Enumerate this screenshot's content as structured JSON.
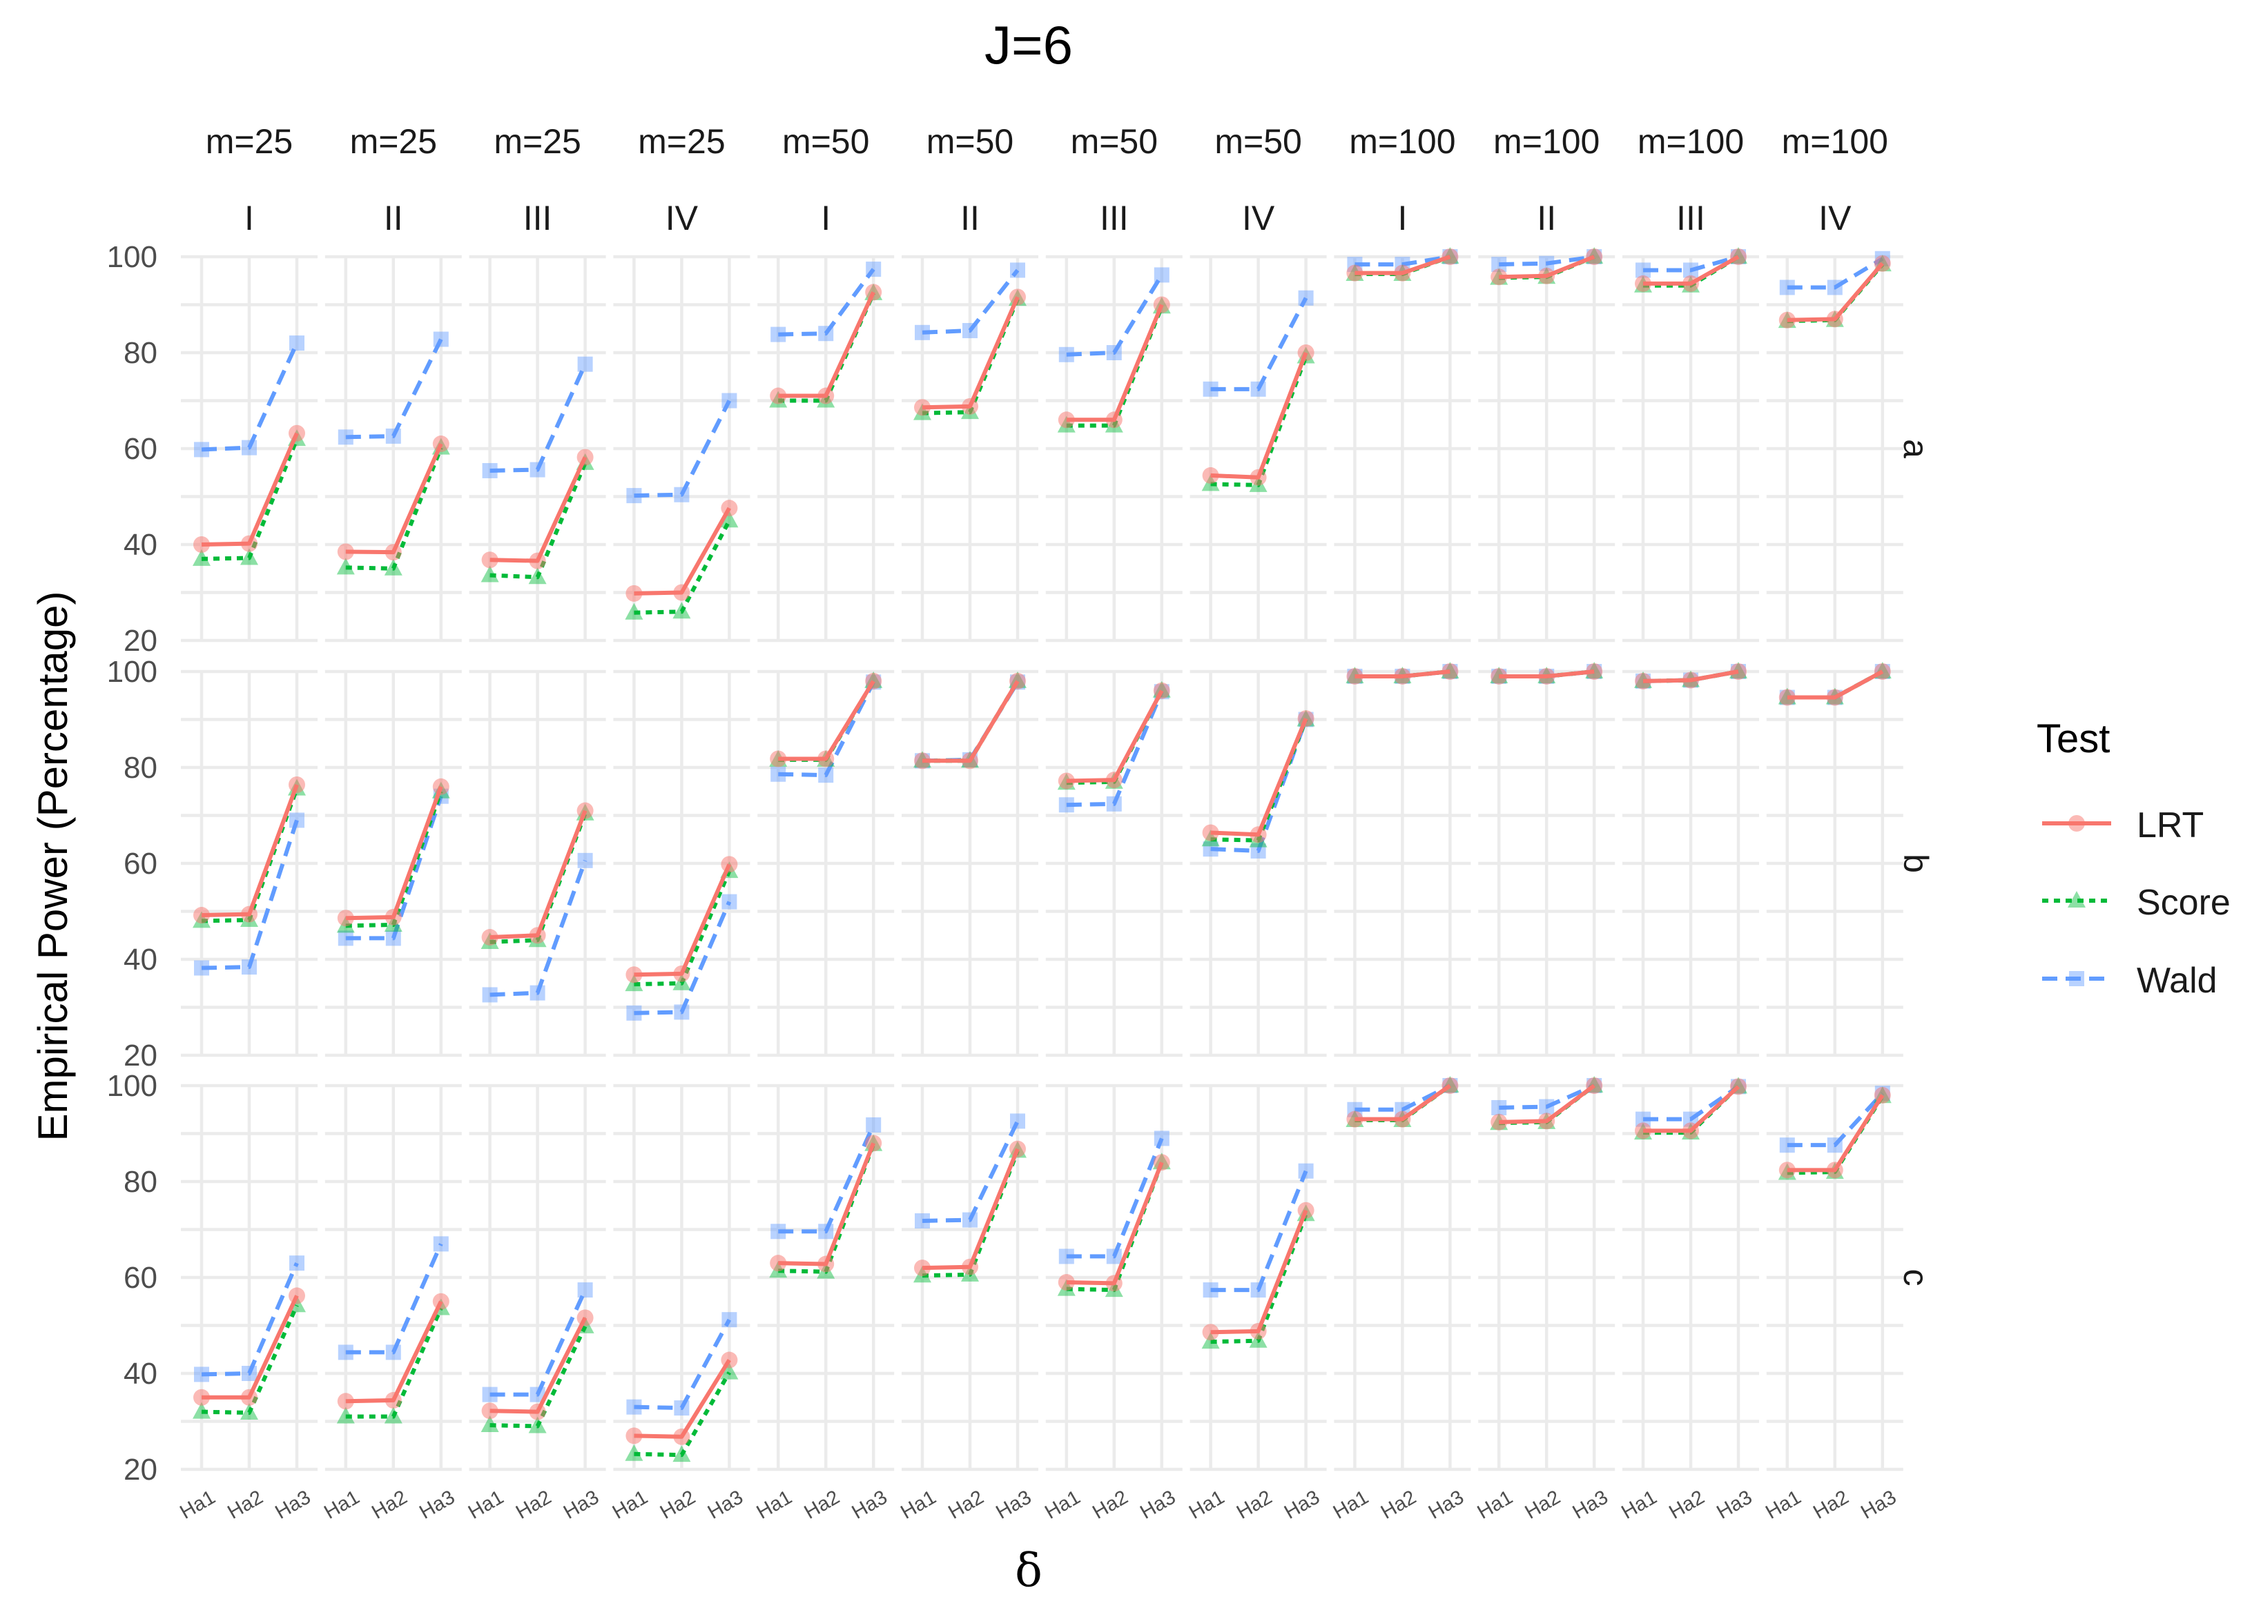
{
  "chart_data": {
    "type": "line",
    "title": "J=6",
    "xlabel": "δ",
    "ylabel": "Empirical Power (Percentage)",
    "x_categories": [
      "Ha1",
      "Ha2",
      "Ha3"
    ],
    "ylim": [
      20,
      100
    ],
    "y_ticks": [
      20,
      40,
      60,
      80,
      100
    ],
    "y_tick_labels": [
      "20",
      "40",
      "60",
      "80",
      "100"
    ],
    "grid": true,
    "legend": {
      "title": "Test",
      "position": "right",
      "entries": [
        {
          "name": "LRT",
          "color": "#F8766D",
          "marker": "circle",
          "line": "solid"
        },
        {
          "name": "Score",
          "color": "#00BA38",
          "marker": "triangle",
          "line": "dotted"
        },
        {
          "name": "Wald",
          "color": "#619CFF",
          "marker": "square",
          "line": "dashed"
        }
      ]
    },
    "columns": [
      {
        "m": "m=25",
        "case": "I"
      },
      {
        "m": "m=25",
        "case": "II"
      },
      {
        "m": "m=25",
        "case": "III"
      },
      {
        "m": "m=25",
        "case": "IV"
      },
      {
        "m": "m=50",
        "case": "I"
      },
      {
        "m": "m=50",
        "case": "II"
      },
      {
        "m": "m=50",
        "case": "III"
      },
      {
        "m": "m=50",
        "case": "IV"
      },
      {
        "m": "m=100",
        "case": "I"
      },
      {
        "m": "m=100",
        "case": "II"
      },
      {
        "m": "m=100",
        "case": "III"
      },
      {
        "m": "m=100",
        "case": "IV"
      }
    ],
    "rows": [
      "a",
      "b",
      "c"
    ],
    "values": {
      "a": {
        "LRT": [
          [
            40.0,
            40.2,
            63.2
          ],
          [
            38.5,
            38.4,
            61.0
          ],
          [
            36.8,
            36.6,
            58.2
          ],
          [
            29.8,
            30.0,
            47.6
          ],
          [
            71.0,
            71.0,
            92.6
          ],
          [
            68.6,
            68.8,
            91.6
          ],
          [
            66.0,
            66.0,
            90.0
          ],
          [
            54.4,
            54.0,
            80.0
          ],
          [
            96.6,
            96.6,
            100.0
          ],
          [
            95.8,
            96.0,
            100.0
          ],
          [
            94.4,
            94.4,
            100.0
          ],
          [
            86.8,
            87.0,
            98.6
          ]
        ],
        "Score": [
          [
            37.0,
            37.2,
            62.0
          ],
          [
            35.2,
            35.0,
            60.2
          ],
          [
            33.6,
            33.2,
            57.0
          ],
          [
            25.8,
            26.0,
            45.0
          ],
          [
            70.0,
            70.0,
            92.4
          ],
          [
            67.4,
            67.6,
            91.2
          ],
          [
            64.8,
            64.8,
            89.6
          ],
          [
            52.6,
            52.4,
            79.2
          ],
          [
            96.4,
            96.4,
            100.0
          ],
          [
            95.6,
            95.8,
            100.0
          ],
          [
            94.0,
            94.0,
            100.0
          ],
          [
            86.6,
            86.8,
            98.4
          ]
        ],
        "Wald": [
          [
            59.8,
            60.2,
            82.0
          ],
          [
            62.4,
            62.6,
            82.8
          ],
          [
            55.4,
            55.6,
            77.6
          ],
          [
            50.2,
            50.4,
            70.0
          ],
          [
            83.8,
            84.0,
            97.4
          ],
          [
            84.2,
            84.6,
            97.2
          ],
          [
            79.6,
            80.0,
            96.2
          ],
          [
            72.4,
            72.4,
            91.4
          ],
          [
            98.4,
            98.4,
            100.0
          ],
          [
            98.4,
            98.6,
            100.0
          ],
          [
            97.2,
            97.2,
            100.0
          ],
          [
            93.6,
            93.6,
            99.6
          ]
        ]
      },
      "b": {
        "LRT": [
          [
            49.2,
            49.4,
            76.4
          ],
          [
            48.6,
            48.8,
            76.0
          ],
          [
            44.6,
            45.0,
            71.0
          ],
          [
            36.8,
            37.0,
            59.8
          ],
          [
            81.8,
            81.8,
            98.0
          ],
          [
            81.4,
            81.4,
            98.0
          ],
          [
            77.2,
            77.4,
            96.0
          ],
          [
            66.4,
            66.0,
            90.2
          ],
          [
            99.0,
            99.0,
            100.0
          ],
          [
            99.0,
            99.0,
            100.0
          ],
          [
            98.0,
            98.2,
            100.0
          ],
          [
            94.6,
            94.6,
            100.0
          ]
        ],
        "Score": [
          [
            48.0,
            48.2,
            75.6
          ],
          [
            47.0,
            47.2,
            75.0
          ],
          [
            43.6,
            44.0,
            70.4
          ],
          [
            34.8,
            35.0,
            58.4
          ],
          [
            81.6,
            81.6,
            98.0
          ],
          [
            81.4,
            81.4,
            98.0
          ],
          [
            76.8,
            77.0,
            96.0
          ],
          [
            65.0,
            64.8,
            90.0
          ],
          [
            99.0,
            99.0,
            100.0
          ],
          [
            99.0,
            99.0,
            100.0
          ],
          [
            98.0,
            98.2,
            100.0
          ],
          [
            94.6,
            94.6,
            100.0
          ]
        ],
        "Wald": [
          [
            38.2,
            38.4,
            69.0
          ],
          [
            44.4,
            44.4,
            74.0
          ],
          [
            32.6,
            33.0,
            60.6
          ],
          [
            28.8,
            29.0,
            52.0
          ],
          [
            78.6,
            78.4,
            97.8
          ],
          [
            81.4,
            81.6,
            97.8
          ],
          [
            72.2,
            72.4,
            95.8
          ],
          [
            63.0,
            62.6,
            90.0
          ],
          [
            99.0,
            99.0,
            100.0
          ],
          [
            99.0,
            99.0,
            100.0
          ],
          [
            98.0,
            98.2,
            100.0
          ],
          [
            94.6,
            94.6,
            100.0
          ]
        ]
      },
      "c": {
        "LRT": [
          [
            35.0,
            35.0,
            56.2
          ],
          [
            34.2,
            34.4,
            55.0
          ],
          [
            32.2,
            32.0,
            51.6
          ],
          [
            27.0,
            26.8,
            42.8
          ],
          [
            63.0,
            62.8,
            88.0
          ],
          [
            62.0,
            62.2,
            86.8
          ],
          [
            59.0,
            58.8,
            84.0
          ],
          [
            48.6,
            48.8,
            74.0
          ],
          [
            93.0,
            93.0,
            100.0
          ],
          [
            92.4,
            92.6,
            100.0
          ],
          [
            90.6,
            90.6,
            99.8
          ],
          [
            82.4,
            82.4,
            98.0
          ]
        ],
        "Score": [
          [
            32.0,
            31.8,
            54.2
          ],
          [
            31.0,
            31.0,
            53.6
          ],
          [
            29.2,
            29.0,
            49.8
          ],
          [
            23.2,
            23.0,
            40.2
          ],
          [
            61.4,
            61.2,
            87.8
          ],
          [
            60.4,
            60.6,
            86.4
          ],
          [
            57.6,
            57.4,
            84.0
          ],
          [
            46.6,
            46.8,
            73.2
          ],
          [
            92.8,
            92.8,
            100.0
          ],
          [
            92.2,
            92.4,
            100.0
          ],
          [
            90.2,
            90.2,
            99.8
          ],
          [
            81.8,
            82.0,
            97.8
          ]
        ],
        "Wald": [
          [
            39.8,
            40.0,
            63.0
          ],
          [
            44.4,
            44.4,
            67.0
          ],
          [
            35.6,
            35.6,
            57.4
          ],
          [
            33.0,
            32.8,
            51.2
          ],
          [
            69.6,
            69.6,
            91.8
          ],
          [
            71.8,
            72.0,
            92.6
          ],
          [
            64.4,
            64.4,
            89.0
          ],
          [
            57.4,
            57.4,
            82.2
          ],
          [
            95.0,
            95.0,
            100.0
          ],
          [
            95.4,
            95.6,
            100.0
          ],
          [
            93.0,
            93.0,
            99.8
          ],
          [
            87.6,
            87.6,
            98.4
          ]
        ]
      }
    }
  }
}
